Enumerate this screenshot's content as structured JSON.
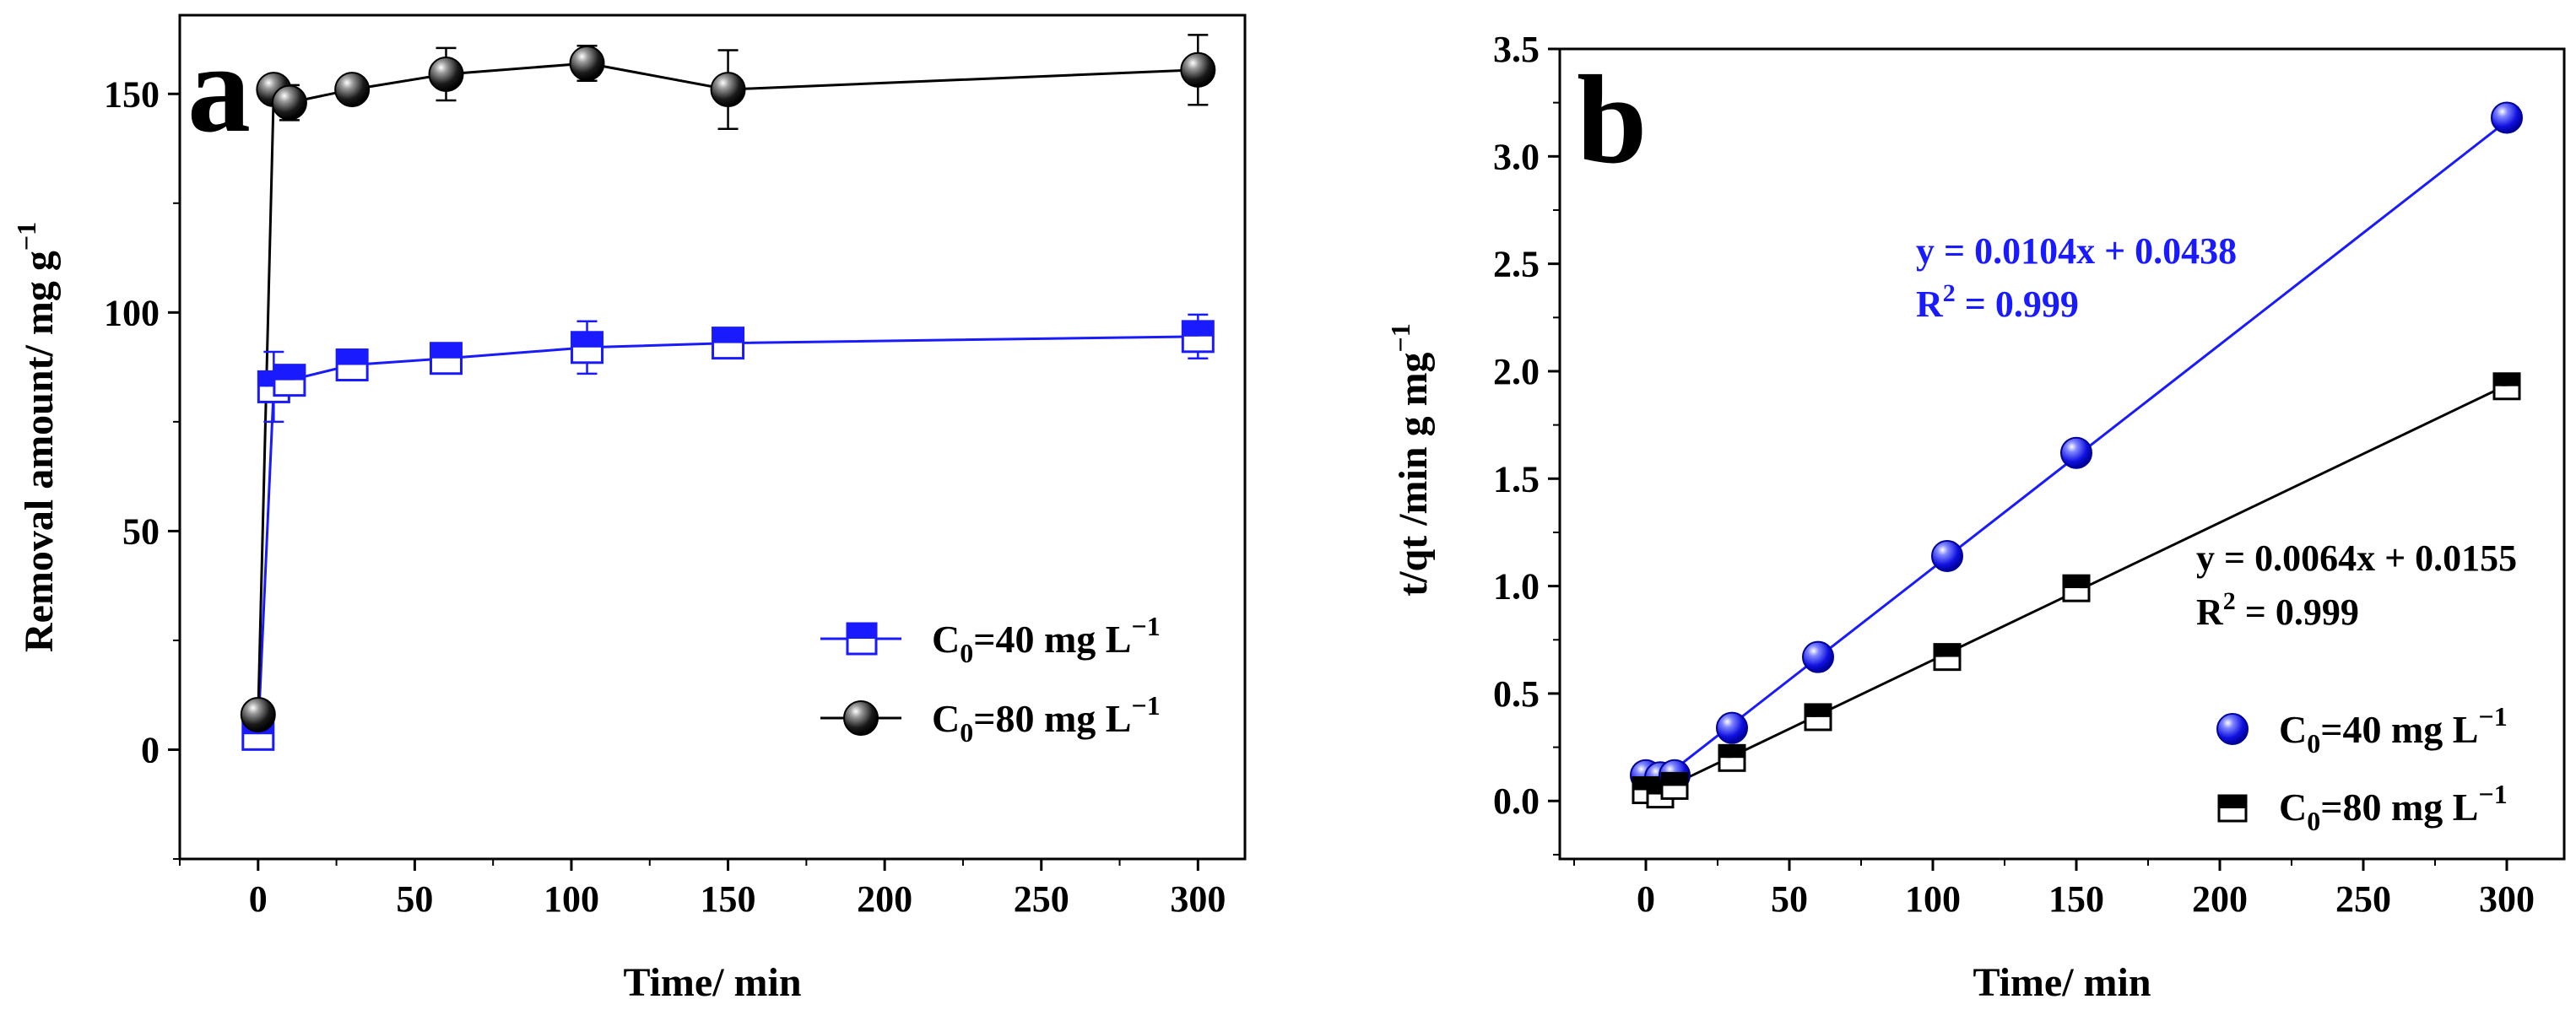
{
  "colors": {
    "blue": "#1a1aff",
    "black": "#000000",
    "axis": "#000000"
  },
  "chart_data": [
    {
      "panel": "a",
      "type": "line",
      "title": "",
      "xlabel": "Time/ min",
      "ylabel": "Removal amount/ mg g",
      "ylabel_sup": "−1",
      "xlim": [
        -25,
        315
      ],
      "ylim": [
        -25,
        168
      ],
      "xticks": [
        0,
        50,
        100,
        150,
        200,
        250,
        300
      ],
      "yticks": [
        0,
        50,
        100,
        150
      ],
      "series": [
        {
          "name": "C",
          "name_sub": "0",
          "name_rest": "=40 mg L",
          "name_sup": "−1",
          "marker": "half-square",
          "color": "#1a1aff",
          "x": [
            0,
            5,
            10,
            30,
            60,
            105,
            150,
            300
          ],
          "y": [
            3.5,
            83,
            84.5,
            88,
            89.5,
            92,
            93,
            94.5
          ],
          "err": [
            0,
            8,
            3,
            3,
            2,
            6,
            2,
            5
          ]
        },
        {
          "name": "C",
          "name_sub": "0",
          "name_rest": "=80 mg L",
          "name_sup": "−1",
          "marker": "sphere",
          "color": "#000000",
          "x": [
            0,
            5,
            10,
            30,
            60,
            105,
            150,
            300
          ],
          "y": [
            8,
            151,
            148,
            151,
            154.5,
            157,
            151,
            155.5
          ],
          "err": [
            0,
            2,
            4,
            3,
            6,
            4,
            9,
            8
          ]
        }
      ]
    },
    {
      "panel": "b",
      "type": "scatter",
      "title": "",
      "xlabel": "Time/ min",
      "ylabel": "t/qt /min g mg",
      "ylabel_sup": "−1",
      "xlim": [
        -30,
        320
      ],
      "ylim": [
        -0.27,
        3.5
      ],
      "xticks": [
        0,
        50,
        100,
        150,
        200,
        250,
        300
      ],
      "yticks": [
        0.0,
        0.5,
        1.0,
        1.5,
        2.0,
        2.5,
        3.0,
        3.5
      ],
      "series": [
        {
          "name": "C",
          "name_sub": "0",
          "name_rest": "=40 mg L",
          "name_sup": "−1",
          "marker": "sphere",
          "color": "#1a1aff",
          "x": [
            0,
            5,
            10,
            30,
            60,
            105,
            150,
            300
          ],
          "y": [
            0.12,
            0.11,
            0.12,
            0.34,
            0.67,
            1.14,
            1.62,
            3.18
          ],
          "fit": {
            "slope": 0.0104,
            "intercept": 0.0438
          }
        },
        {
          "name": "C",
          "name_sub": "0",
          "name_rest": "=80 mg L",
          "name_sup": "−1",
          "marker": "half-square",
          "color": "#000000",
          "x": [
            0,
            5,
            10,
            30,
            60,
            105,
            150,
            300
          ],
          "y": [
            0.05,
            0.03,
            0.07,
            0.2,
            0.39,
            0.67,
            0.99,
            1.93
          ],
          "fit": {
            "slope": 0.0064,
            "intercept": 0.0155
          }
        }
      ],
      "annotations": {
        "eq_blue": "y = 0.0104x + 0.0438",
        "r2_blue_prefix": "R",
        "r2_blue_sup": "2",
        "r2_blue_rest": " = 0.999",
        "eq_black": "y = 0.0064x + 0.0155",
        "r2_black_prefix": "R",
        "r2_black_sup": "2",
        "r2_black_rest": " = 0.999"
      }
    }
  ]
}
